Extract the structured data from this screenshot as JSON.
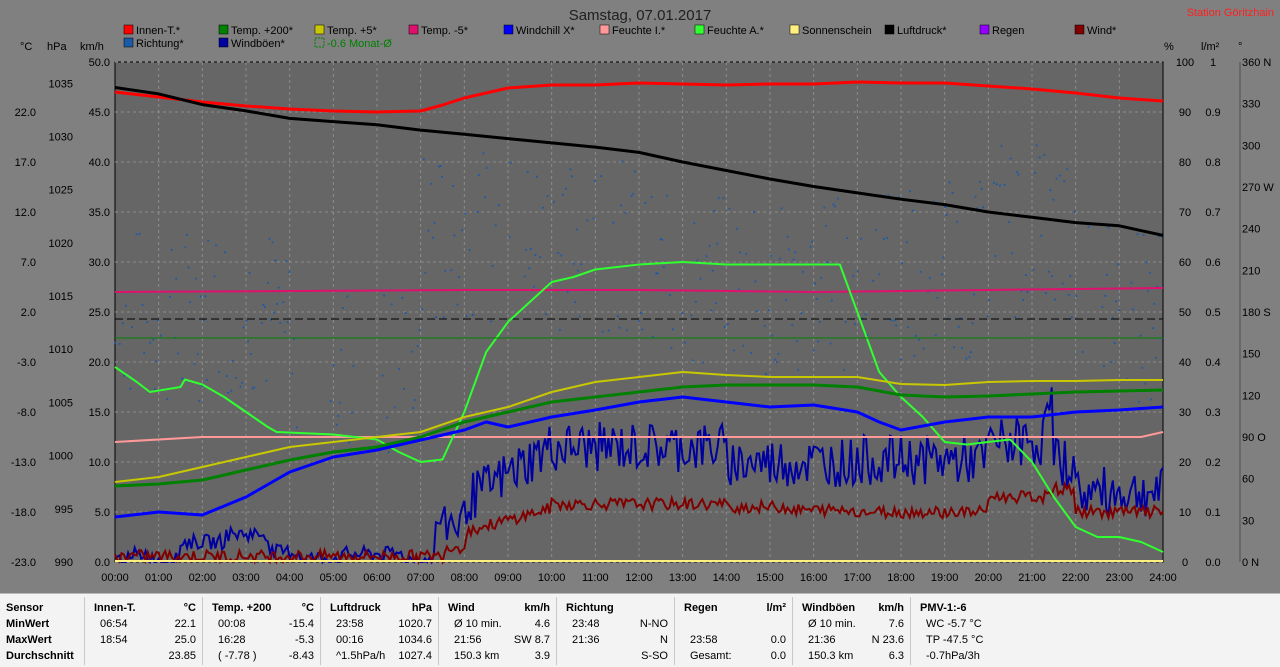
{
  "title": "Samstag, 07.01.2017",
  "station": "Station Göritzhain",
  "axis_units": {
    "celsius": "°C",
    "hpa": "hPa",
    "kmh": "km/h",
    "percent": "%",
    "lm2": "l/m²",
    "degree": "°"
  },
  "colors": {
    "innen": "#ff0000",
    "temp200": "#008000",
    "temp5": "#c8c800",
    "tempm5": "#e0106e",
    "windchill": "#0000ff",
    "feuchteI": "#ff9898",
    "feuchteA": "#30ff30",
    "sonnenschein": "#fff080",
    "luftdruck": "#000000",
    "regen": "#9400ff",
    "wind": "#800000",
    "richtung": "#1a5aa8",
    "windboeen": "#0000a0",
    "monat": "#008000"
  },
  "legend": [
    {
      "label": "Innen-T.*",
      "color": "#ff0000"
    },
    {
      "label": "Temp. +200*",
      "color": "#008000"
    },
    {
      "label": "Temp. +5*",
      "color": "#c8c800"
    },
    {
      "label": "Temp. -5*",
      "color": "#e0106e"
    },
    {
      "label": "Windchill X*",
      "color": "#0000ff"
    },
    {
      "label": "Feuchte I.*",
      "color": "#ff9898"
    },
    {
      "label": "Feuchte A.*",
      "color": "#30ff30"
    },
    {
      "label": "Sonnenschein",
      "color": "#fff080"
    },
    {
      "label": "Luftdruck*",
      "color": "#000000"
    },
    {
      "label": "Regen",
      "color": "#9400ff"
    },
    {
      "label": "Wind*",
      "color": "#800000"
    },
    {
      "label": "Richtung*",
      "color": "#1a5aa8"
    },
    {
      "label": "Windböen*",
      "color": "#0000a0"
    },
    {
      "label": "-0.6 Monat-Ø",
      "color": "#008000",
      "dashed": true
    }
  ],
  "chart_data": {
    "type": "line",
    "x_ticks": [
      "00:00",
      "01:00",
      "02:00",
      "03:00",
      "04:00",
      "05:00",
      "06:00",
      "07:00",
      "08:00",
      "09:00",
      "10:00",
      "11:00",
      "12:00",
      "13:00",
      "14:00",
      "15:00",
      "16:00",
      "17:00",
      "18:00",
      "19:00",
      "20:00",
      "21:00",
      "22:00",
      "23:00",
      "24:00"
    ],
    "xlim": [
      0,
      24
    ],
    "y_axes": {
      "celsius": {
        "ticks": [
          "22.0",
          "17.0",
          "12.0",
          "7.0",
          "2.0",
          "-3.0",
          "-8.0",
          "-13.0",
          "-18.0",
          "-23.0"
        ],
        "range": [
          -23,
          27
        ]
      },
      "hpa": {
        "ticks": [
          "1035",
          "1030",
          "1025",
          "1020",
          "1015",
          "1010",
          "1005",
          "1000",
          "995",
          "990"
        ],
        "range": [
          990,
          1037
        ]
      },
      "kmh": {
        "ticks": [
          "50.0",
          "45.0",
          "40.0",
          "35.0",
          "30.0",
          "25.0",
          "20.0",
          "15.0",
          "10.0",
          "5.0",
          "0.0"
        ],
        "range": [
          0,
          50
        ]
      },
      "percent": {
        "ticks": [
          "100",
          "90",
          "80",
          "70",
          "60",
          "50",
          "40",
          "30",
          "20",
          "10",
          "0"
        ],
        "range": [
          0,
          100
        ]
      },
      "lm2": {
        "ticks": [
          "1",
          "0.9",
          "0.8",
          "0.7",
          "0.6",
          "0.5",
          "0.4",
          "0.3",
          "0.2",
          "0.1",
          "0.0"
        ],
        "range": [
          0,
          1
        ]
      },
      "degree": {
        "ticks": [
          "360 N",
          "330",
          "300",
          "270 W",
          "240",
          "210",
          "180 S",
          "150",
          "120",
          "90 O",
          "60",
          "30",
          "0 N"
        ],
        "range": [
          0,
          360
        ]
      }
    },
    "series": [
      {
        "name": "Innen-T.*",
        "axis": "celsius",
        "color": "#ff0000",
        "width": 3,
        "points": [
          [
            0,
            24.0
          ],
          [
            1,
            23.5
          ],
          [
            2,
            23.0
          ],
          [
            3,
            22.6
          ],
          [
            4,
            22.3
          ],
          [
            5,
            22.1
          ],
          [
            6,
            22.0
          ],
          [
            7,
            22.1
          ],
          [
            7.5,
            22.7
          ],
          [
            8,
            23.4
          ],
          [
            9,
            24.4
          ],
          [
            10,
            24.7
          ],
          [
            11,
            24.7
          ],
          [
            12,
            24.9
          ],
          [
            13,
            24.8
          ],
          [
            14,
            24.7
          ],
          [
            15,
            24.8
          ],
          [
            16,
            24.8
          ],
          [
            17,
            25.0
          ],
          [
            18,
            24.9
          ],
          [
            19,
            24.9
          ],
          [
            20,
            24.6
          ],
          [
            21,
            24.3
          ],
          [
            22,
            23.9
          ],
          [
            23,
            23.4
          ],
          [
            24,
            23.1
          ]
        ]
      },
      {
        "name": "Luftdruck*",
        "axis": "hpa",
        "color": "#000000",
        "width": 3,
        "points": [
          [
            0,
            1034.6
          ],
          [
            1,
            1034.0
          ],
          [
            2,
            1033.0
          ],
          [
            3,
            1032.4
          ],
          [
            4,
            1031.7
          ],
          [
            5,
            1031.4
          ],
          [
            6,
            1031.1
          ],
          [
            7,
            1030.6
          ],
          [
            8,
            1030.2
          ],
          [
            9,
            1029.8
          ],
          [
            10,
            1029.4
          ],
          [
            11,
            1029.0
          ],
          [
            12,
            1028.5
          ],
          [
            13,
            1027.6
          ],
          [
            14,
            1026.8
          ],
          [
            15,
            1026.0
          ],
          [
            16,
            1025.3
          ],
          [
            17,
            1024.7
          ],
          [
            18,
            1024.1
          ],
          [
            19,
            1023.6
          ],
          [
            20,
            1022.9
          ],
          [
            21,
            1022.4
          ],
          [
            22,
            1021.9
          ],
          [
            23,
            1021.6
          ],
          [
            24,
            1020.7
          ]
        ]
      },
      {
        "name": "Temp. -5*",
        "axis": "celsius",
        "color": "#e0106e",
        "width": 2,
        "points": [
          [
            0,
            4.0
          ],
          [
            4,
            4.1
          ],
          [
            8,
            4.2
          ],
          [
            12,
            4.2
          ],
          [
            16,
            4.0
          ],
          [
            20,
            4.2
          ],
          [
            24,
            4.4
          ]
        ]
      },
      {
        "name": "Feuchte I.*",
        "axis": "percent",
        "color": "#ff9898",
        "width": 2,
        "points": [
          [
            0,
            24
          ],
          [
            2,
            25
          ],
          [
            4,
            25
          ],
          [
            6,
            25
          ],
          [
            8,
            25
          ],
          [
            10,
            25
          ],
          [
            12,
            25
          ],
          [
            14,
            25
          ],
          [
            16,
            25
          ],
          [
            18,
            25
          ],
          [
            20,
            25
          ],
          [
            22,
            25
          ],
          [
            23.5,
            25
          ],
          [
            24,
            26
          ]
        ]
      },
      {
        "name": "Feuchte A.*",
        "axis": "percent",
        "color": "#30ff30",
        "width": 2,
        "points": [
          [
            0,
            39
          ],
          [
            0.5,
            36
          ],
          [
            0.8,
            34
          ],
          [
            1.5,
            35
          ],
          [
            1.6,
            36.5
          ],
          [
            2,
            35.5
          ],
          [
            2.5,
            33
          ],
          [
            3,
            30
          ],
          [
            3.5,
            27
          ],
          [
            3.7,
            26
          ],
          [
            5,
            25.5
          ],
          [
            6,
            24.5
          ],
          [
            6.5,
            22
          ],
          [
            7,
            20
          ],
          [
            7.5,
            20.5
          ],
          [
            8,
            30
          ],
          [
            8.5,
            42
          ],
          [
            9,
            48
          ],
          [
            9.5,
            52
          ],
          [
            10,
            56
          ],
          [
            10.5,
            57
          ],
          [
            11,
            58.5
          ],
          [
            12,
            59.5
          ],
          [
            13,
            60
          ],
          [
            14,
            59.5
          ],
          [
            15,
            59.5
          ],
          [
            16,
            59.5
          ],
          [
            16.6,
            59.5
          ],
          [
            17,
            50
          ],
          [
            17.5,
            38
          ],
          [
            18,
            33
          ],
          [
            18.5,
            29
          ],
          [
            19,
            24
          ],
          [
            19.5,
            23.5
          ],
          [
            20,
            24
          ],
          [
            20.5,
            24.5
          ],
          [
            21,
            20
          ],
          [
            21.5,
            13
          ],
          [
            22,
            7
          ],
          [
            22.5,
            5
          ],
          [
            23,
            5
          ],
          [
            23.5,
            4
          ],
          [
            24,
            2
          ]
        ]
      },
      {
        "name": "Temp. +5*",
        "axis": "celsius",
        "color": "#c8c800",
        "width": 2,
        "points": [
          [
            0,
            -15.0
          ],
          [
            1,
            -14.5
          ],
          [
            2,
            -13.5
          ],
          [
            3,
            -12.5
          ],
          [
            4,
            -11.5
          ],
          [
            5,
            -11.0
          ],
          [
            6,
            -10.5
          ],
          [
            7,
            -10.0
          ],
          [
            8,
            -8.5
          ],
          [
            9,
            -7.5
          ],
          [
            10,
            -6.0
          ],
          [
            11,
            -5.0
          ],
          [
            12,
            -4.5
          ],
          [
            13,
            -4.0
          ],
          [
            14,
            -4.3
          ],
          [
            15,
            -4.5
          ],
          [
            16,
            -4.5
          ],
          [
            17,
            -4.5
          ],
          [
            18,
            -5.2
          ],
          [
            19,
            -5.3
          ],
          [
            20,
            -5.0
          ],
          [
            21,
            -4.9
          ],
          [
            22,
            -4.9
          ],
          [
            23,
            -4.8
          ],
          [
            24,
            -4.8
          ]
        ]
      },
      {
        "name": "Temp. +200*",
        "axis": "celsius",
        "color": "#008000",
        "width": 3,
        "points": [
          [
            0,
            -15.4
          ],
          [
            1,
            -15.2
          ],
          [
            2,
            -14.8
          ],
          [
            3,
            -13.8
          ],
          [
            4,
            -12.8
          ],
          [
            5,
            -12.0
          ],
          [
            6,
            -11.5
          ],
          [
            7,
            -10.5
          ],
          [
            8,
            -9.0
          ],
          [
            9,
            -8.0
          ],
          [
            10,
            -7.0
          ],
          [
            11,
            -6.5
          ],
          [
            12,
            -6.0
          ],
          [
            13,
            -5.5
          ],
          [
            14,
            -5.3
          ],
          [
            15,
            -5.3
          ],
          [
            16,
            -5.3
          ],
          [
            17,
            -5.5
          ],
          [
            18,
            -6.3
          ],
          [
            19,
            -6.5
          ],
          [
            20,
            -6.4
          ],
          [
            21,
            -6.2
          ],
          [
            22,
            -6.0
          ],
          [
            23,
            -5.9
          ],
          [
            24,
            -5.8
          ]
        ]
      },
      {
        "name": "Windchill X*",
        "axis": "celsius",
        "color": "#0000ff",
        "width": 3,
        "points": [
          [
            0,
            -18.5
          ],
          [
            1,
            -18.0
          ],
          [
            2,
            -18.3
          ],
          [
            3,
            -16.5
          ],
          [
            4,
            -14.0
          ],
          [
            5,
            -12.5
          ],
          [
            6,
            -11.8
          ],
          [
            7,
            -10.8
          ],
          [
            8,
            -9.8
          ],
          [
            8.5,
            -9.0
          ],
          [
            9,
            -9.5
          ],
          [
            10,
            -8.5
          ],
          [
            11,
            -7.8
          ],
          [
            12,
            -7.0
          ],
          [
            13,
            -6.5
          ],
          [
            14,
            -7.0
          ],
          [
            15,
            -7.5
          ],
          [
            16,
            -7.3
          ],
          [
            17,
            -8.0
          ],
          [
            17.5,
            -9.0
          ],
          [
            18,
            -9.8
          ],
          [
            19,
            -9.0
          ],
          [
            20,
            -8.5
          ],
          [
            21,
            -8.5
          ],
          [
            22,
            -8.0
          ],
          [
            23,
            -7.8
          ],
          [
            24,
            -7.5
          ]
        ]
      },
      {
        "name": "Monat-Ø",
        "axis": "celsius",
        "color": "#008000",
        "width": 1,
        "points": [
          [
            0,
            -0.6
          ],
          [
            24,
            -0.6
          ]
        ]
      }
    ],
    "wind_series": {
      "name": "Wind*",
      "axis": "kmh",
      "color": "#800000"
    },
    "boeen_series": {
      "name": "Windböen*",
      "axis": "kmh",
      "color": "#0000a0"
    },
    "richtung_series": {
      "name": "Richtung*",
      "axis": "degree",
      "color": "#1a5aa8"
    },
    "sonnenschein": {
      "name": "Sonnenschein",
      "color": "#fff080"
    },
    "dashed_line": {
      "axis": "kmh",
      "value": 24.3,
      "color": "#000000"
    }
  },
  "stats": {
    "row_labels": [
      "Sensor",
      "MinWert",
      "MaxWert",
      "Durchschnitt"
    ],
    "sections": [
      {
        "name": "Innen-T.",
        "unit": "°C",
        "rows": [
          [
            "06:54",
            "22.1"
          ],
          [
            "18:54",
            "25.0"
          ],
          [
            "",
            "23.85"
          ]
        ]
      },
      {
        "name": "Temp. +200",
        "unit": "°C",
        "rows": [
          [
            "00:08",
            "-15.4"
          ],
          [
            "16:28",
            "-5.3"
          ],
          [
            "( -7.78 )",
            "-8.43"
          ]
        ]
      },
      {
        "name": "Luftdruck",
        "unit": "hPa",
        "rows": [
          [
            "23:58",
            "1020.7"
          ],
          [
            "00:16",
            "1034.6"
          ],
          [
            "^1.5hPa/h",
            "1027.4"
          ]
        ]
      },
      {
        "name": "Wind",
        "unit": "km/h",
        "rows": [
          [
            "Ø 10 min.",
            "4.6"
          ],
          [
            "21:56",
            "SW 8.7"
          ],
          [
            "150.3 km",
            "3.9"
          ]
        ]
      },
      {
        "name": "Richtung",
        "unit": "",
        "rows": [
          [
            "23:48",
            "N-NO"
          ],
          [
            "21:36",
            "N"
          ],
          [
            "",
            "S-SO"
          ]
        ]
      },
      {
        "name": "Regen",
        "unit": "l/m²",
        "rows": [
          [
            "",
            ""
          ],
          [
            "23:58",
            "0.0"
          ],
          [
            "Gesamt:",
            "0.0"
          ]
        ]
      },
      {
        "name": "Windböen",
        "unit": "km/h",
        "rows": [
          [
            "Ø 10 min.",
            "7.6"
          ],
          [
            "21:36",
            "N 23.6"
          ],
          [
            "150.3 km",
            "6.3"
          ]
        ]
      },
      {
        "name": "PMV-1:-6",
        "unit": "",
        "rows": [
          [
            "WC -5.7 °C",
            ""
          ],
          [
            "TP -47.5 °C",
            ""
          ],
          [
            "-0.7hPa/3h",
            ""
          ]
        ]
      }
    ]
  }
}
